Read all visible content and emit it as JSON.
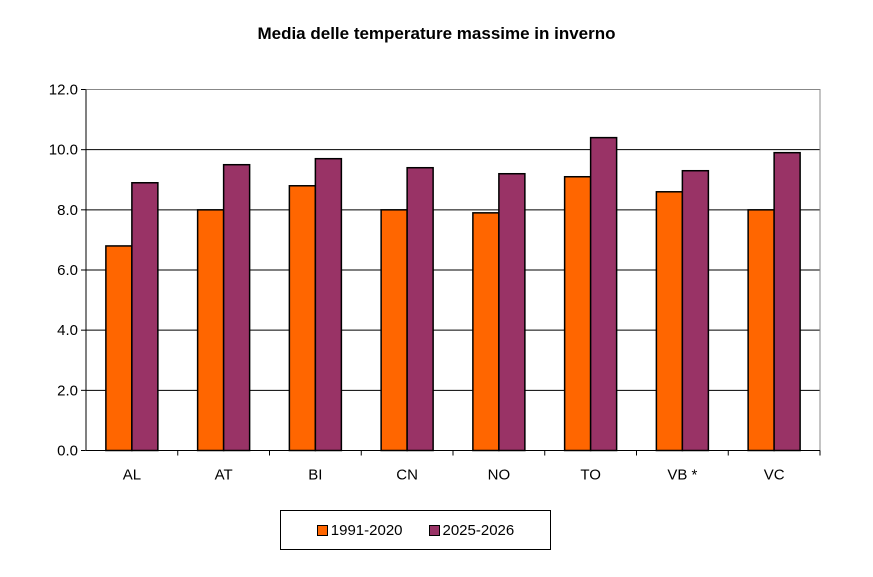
{
  "chart_data": {
    "type": "bar",
    "title": "Media delle temperature  massime  in inverno",
    "categories": [
      "AL",
      "AT",
      "BI",
      "CN",
      "NO",
      "TO",
      "VB *",
      "VC"
    ],
    "series": [
      {
        "name": "1991-2020",
        "color": "#FF6600",
        "values": [
          6.8,
          8.0,
          8.8,
          8.0,
          7.9,
          9.1,
          8.6,
          8.0
        ]
      },
      {
        "name": "2025-2026",
        "color": "#993366",
        "values": [
          8.9,
          9.5,
          9.7,
          9.4,
          9.2,
          10.4,
          9.3,
          9.9
        ]
      }
    ],
    "ylim": [
      0,
      12
    ],
    "yticks": [
      "0.0",
      "2.0",
      "4.0",
      "6.0",
      "8.0",
      "10.0",
      "12.0"
    ],
    "grid": true,
    "legend": "bottom",
    "xlabel": "",
    "ylabel": ""
  }
}
